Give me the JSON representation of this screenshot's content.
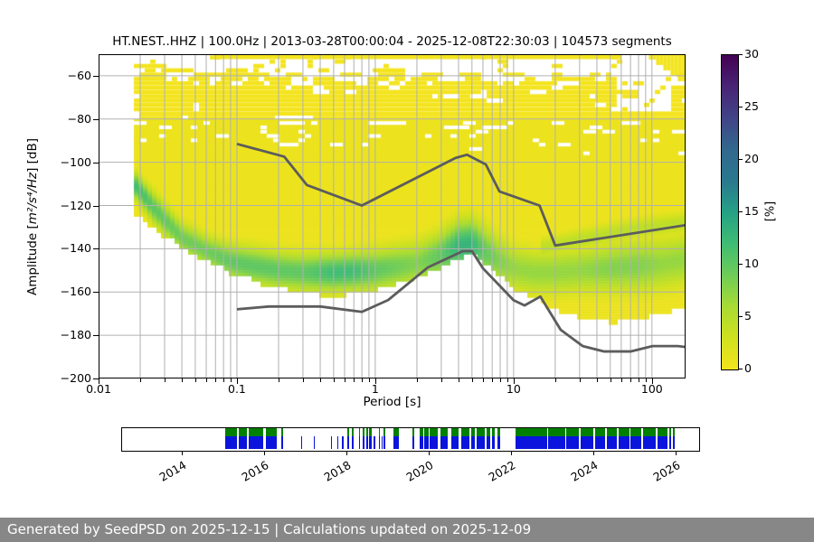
{
  "figure": {
    "footer_text": "Generated by SeedPSD on 2025-12-15 | Calculations updated on 2025-12-09",
    "footer_bg": "#878787",
    "footer_fg": "#ffffff",
    "background": "#ffffff"
  },
  "chart_data": [
    {
      "type": "heatmap",
      "name": "ppsd-spectrogram",
      "title": "HT.NEST..HHZ | 100.0Hz | 2013-03-28T00:00:04 - 2025-12-08T22:30:03 | 104573 segments",
      "xlabel": "Period [s]",
      "ylabel": {
        "prefix": "Amplitude [",
        "math": "m²/s⁴/Hz",
        "suffix": "] [dB]"
      },
      "xscale": "log",
      "xlim": [
        0.01,
        175
      ],
      "ylim": [
        -200,
        -50
      ],
      "xtick_values": [
        0.01,
        0.1,
        1,
        10,
        100
      ],
      "xtick_labels": [
        "0.01",
        "0.1",
        "1",
        "10",
        "100"
      ],
      "ytick_values": [
        -60,
        -80,
        -100,
        -120,
        -140,
        -160,
        -180,
        -200
      ],
      "grid": true,
      "grid_color": "#b0b0b0",
      "colorbar": {
        "label": "[%]",
        "min": 0,
        "max": 30,
        "ticks": [
          0,
          5,
          10,
          15,
          20,
          25,
          30
        ],
        "colormap": "viridis_r",
        "anchors": [
          [
            0,
            "#f3e41e"
          ],
          [
            3,
            "#cfe11f"
          ],
          [
            6,
            "#a8db33"
          ],
          [
            9,
            "#6ecc58"
          ],
          [
            12,
            "#3fbc73"
          ],
          [
            15,
            "#25a186"
          ],
          [
            18,
            "#2a788e"
          ],
          [
            21,
            "#31688e"
          ],
          [
            24,
            "#414487"
          ],
          [
            27,
            "#482475"
          ],
          [
            30,
            "#440154"
          ]
        ]
      },
      "distribution": {
        "left_edge_period": 0.018,
        "speckle_top_db": -50,
        "solid_top_db": -80,
        "periods": [
          0.018,
          0.025,
          0.04,
          0.06,
          0.09,
          0.13,
          0.2,
          0.3,
          0.5,
          0.7,
          1.0,
          2.0,
          3.0,
          4.0,
          5.0,
          6.0,
          8.0,
          10,
          14,
          20,
          30,
          50,
          80,
          120,
          175
        ],
        "mode_db": [
          -110,
          -121,
          -135,
          -141,
          -146,
          -148,
          -150,
          -151,
          -151,
          -150.5,
          -150,
          -147,
          -143,
          -139,
          -138,
          -141,
          -146,
          -149,
          -151,
          -151,
          -150,
          -149,
          -148,
          -147,
          -145
        ],
        "peak_pct": [
          12,
          10,
          9,
          9,
          10,
          10,
          10,
          10,
          12,
          12,
          10,
          8,
          10,
          13,
          13,
          10,
          8,
          7,
          7,
          7,
          7,
          8,
          8,
          7,
          7
        ],
        "sigma_db": [
          4,
          5,
          5,
          5,
          5.5,
          6,
          6,
          6,
          6,
          6,
          6.5,
          7,
          7.5,
          8,
          8,
          8,
          7.5,
          7,
          7,
          7,
          7,
          7.5,
          8,
          8,
          8
        ],
        "bottom_db": [
          -124,
          -131,
          -140,
          -146,
          -151,
          -155,
          -158,
          -161,
          -161.5,
          -161,
          -158.5,
          -153,
          -148,
          -144,
          -143,
          -147,
          -154,
          -158,
          -163,
          -168,
          -172,
          -174,
          -172,
          -169.5,
          -167
        ],
        "secondary_band": {
          "periods": [
            16,
            30,
            60,
            100,
            175
          ],
          "mode_db": [
            -140,
            -136,
            -132,
            -130,
            -128
          ],
          "peak_pct": 4.5,
          "sigma_db": 3.5
        },
        "speckle": {
          "seed": 7,
          "left_boost_below_period": 0.032,
          "notch": {
            "from_period": 55,
            "to_period": 135,
            "above_db": -76
          },
          "top_strip": {
            "from_period": 0.07,
            "to_period": 60,
            "bottom_db": -52.3
          },
          "right_blob": {
            "from_period": 95,
            "bottom_start_db": -52,
            "bottom_end_db": -64
          }
        }
      },
      "noise_models": {
        "color": "#5c5c5c",
        "high": [
          [
            0.1,
            -91.5
          ],
          [
            0.22,
            -97.4
          ],
          [
            0.32,
            -110.5
          ],
          [
            0.8,
            -120.0
          ],
          [
            3.8,
            -98.0
          ],
          [
            4.6,
            -96.5
          ],
          [
            6.3,
            -101.0
          ],
          [
            7.9,
            -113.5
          ],
          [
            15.4,
            -120.0
          ],
          [
            20.0,
            -138.5
          ],
          [
            354.8,
            -126.0
          ]
        ],
        "low": [
          [
            0.1,
            -168.0
          ],
          [
            0.17,
            -166.7
          ],
          [
            0.4,
            -166.7
          ],
          [
            0.8,
            -169.2
          ],
          [
            1.24,
            -163.7
          ],
          [
            2.4,
            -148.6
          ],
          [
            4.3,
            -141.1
          ],
          [
            5.0,
            -141.1
          ],
          [
            6.0,
            -149.0
          ],
          [
            10.0,
            -163.8
          ],
          [
            12.0,
            -166.2
          ],
          [
            15.6,
            -162.1
          ],
          [
            21.9,
            -177.5
          ],
          [
            31.6,
            -185.0
          ],
          [
            45.0,
            -187.5
          ],
          [
            70.0,
            -187.5
          ],
          [
            101.0,
            -185.0
          ],
          [
            154.0,
            -185.0
          ],
          [
            328.0,
            -187.5
          ]
        ]
      }
    },
    {
      "type": "availability-timeline",
      "name": "data-availability",
      "x_range": [
        2012.55,
        2026.57
      ],
      "year_ticks": [
        2014,
        2016,
        2018,
        2020,
        2022,
        2024,
        2026
      ],
      "row_colors": {
        "top": "#008000",
        "bottom": "#0a14dc"
      },
      "segments": [
        {
          "start": 2015.05,
          "end": 2015.35,
          "rows": "both"
        },
        {
          "start": 2015.38,
          "end": 2015.58,
          "rows": "both"
        },
        {
          "start": 2015.62,
          "end": 2015.97,
          "rows": "both"
        },
        {
          "start": 2016.04,
          "end": 2016.3,
          "rows": "both"
        },
        {
          "start": 2016.42,
          "end": 2016.46,
          "rows": "both"
        },
        {
          "start": 2016.9,
          "end": 2016.93,
          "rows": "blue"
        },
        {
          "start": 2017.2,
          "end": 2017.23,
          "rows": "blue"
        },
        {
          "start": 2017.62,
          "end": 2017.64,
          "rows": "blue"
        },
        {
          "start": 2017.78,
          "end": 2017.81,
          "rows": "blue"
        },
        {
          "start": 2017.9,
          "end": 2017.93,
          "rows": "blue"
        },
        {
          "start": 2018.02,
          "end": 2018.06,
          "rows": "both"
        },
        {
          "start": 2018.13,
          "end": 2018.17,
          "rows": "both"
        },
        {
          "start": 2018.3,
          "end": 2018.34,
          "rows": "both"
        },
        {
          "start": 2018.4,
          "end": 2018.44,
          "rows": "both"
        },
        {
          "start": 2018.48,
          "end": 2018.53,
          "rows": "both"
        },
        {
          "start": 2018.56,
          "end": 2018.61,
          "rows": "both"
        },
        {
          "start": 2018.67,
          "end": 2018.69,
          "rows": "blue"
        },
        {
          "start": 2018.78,
          "end": 2018.81,
          "rows": "both"
        },
        {
          "start": 2018.85,
          "end": 2018.87,
          "rows": "blue"
        },
        {
          "start": 2018.9,
          "end": 2018.94,
          "rows": "both"
        },
        {
          "start": 2019.15,
          "end": 2019.27,
          "rows": "both"
        },
        {
          "start": 2019.6,
          "end": 2019.65,
          "rows": "both"
        },
        {
          "start": 2019.78,
          "end": 2019.86,
          "rows": "both"
        },
        {
          "start": 2019.9,
          "end": 2019.99,
          "rows": "both"
        },
        {
          "start": 2020.03,
          "end": 2020.23,
          "rows": "both"
        },
        {
          "start": 2020.28,
          "end": 2020.46,
          "rows": "both"
        },
        {
          "start": 2020.55,
          "end": 2020.73,
          "rows": "both"
        },
        {
          "start": 2020.8,
          "end": 2020.98,
          "rows": "both"
        },
        {
          "start": 2021.04,
          "end": 2021.13,
          "rows": "both"
        },
        {
          "start": 2021.16,
          "end": 2021.36,
          "rows": "both"
        },
        {
          "start": 2021.4,
          "end": 2021.49,
          "rows": "both"
        },
        {
          "start": 2021.53,
          "end": 2021.61,
          "rows": "both"
        },
        {
          "start": 2021.68,
          "end": 2021.73,
          "rows": "both"
        },
        {
          "start": 2022.12,
          "end": 2022.87,
          "rows": "both"
        },
        {
          "start": 2022.91,
          "end": 2023.31,
          "rows": "both"
        },
        {
          "start": 2023.35,
          "end": 2023.65,
          "rows": "both"
        },
        {
          "start": 2023.69,
          "end": 2024.01,
          "rows": "both"
        },
        {
          "start": 2024.05,
          "end": 2024.29,
          "rows": "both"
        },
        {
          "start": 2024.33,
          "end": 2024.57,
          "rows": "both"
        },
        {
          "start": 2024.61,
          "end": 2024.87,
          "rows": "both"
        },
        {
          "start": 2024.91,
          "end": 2025.17,
          "rows": "both"
        },
        {
          "start": 2025.21,
          "end": 2025.51,
          "rows": "both"
        },
        {
          "start": 2025.55,
          "end": 2025.81,
          "rows": "both"
        },
        {
          "start": 2025.85,
          "end": 2025.89,
          "rows": "both"
        },
        {
          "start": 2025.94,
          "end": 2025.97,
          "rows": "both"
        }
      ]
    }
  ]
}
